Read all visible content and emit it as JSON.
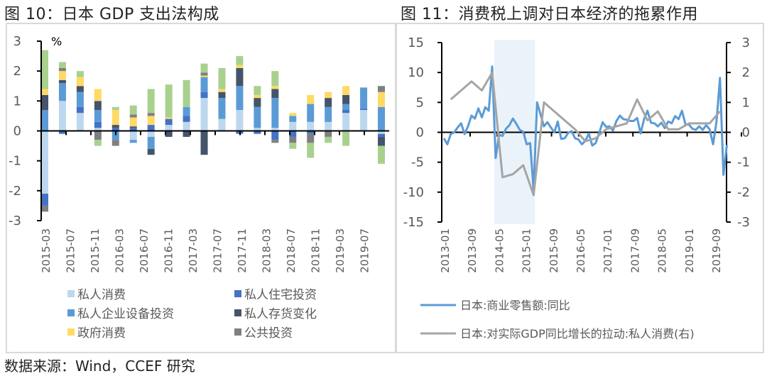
{
  "figures": {
    "left_title": "图 10：日本 GDP 支出法构成",
    "right_title": "图 11：消费税上调对日本经济的拖累作用",
    "source": "数据来源：Wind，CCEF 研究"
  },
  "chart_data": [
    {
      "type": "bar",
      "stacked": true,
      "title": "图 10：日本 GDP 支出法构成",
      "ylabel": "%",
      "xlabel": "",
      "ylim": [
        -3,
        3
      ],
      "yticks": [
        3,
        2,
        1,
        0,
        -1,
        -2,
        -3
      ],
      "grid": false,
      "legend_position": "bottom",
      "categories": [
        "2015-03",
        "2015-06",
        "2015-09",
        "2015-12",
        "2016-03",
        "2016-06",
        "2016-09",
        "2016-12",
        "2017-03",
        "2017-06",
        "2017-09",
        "2017-12",
        "2018-03",
        "2018-06",
        "2018-09",
        "2018-12",
        "2019-03",
        "2019-06",
        "2019-09",
        "2019-12"
      ],
      "xtick_labels": [
        "2015-03",
        "2015-07",
        "2015-11",
        "2016-03",
        "2016-07",
        "2016-11",
        "2017-03",
        "2017-07",
        "2017-11",
        "2018-03",
        "2018-07",
        "2018-11",
        "2019-03",
        "2019-07"
      ],
      "series": [
        {
          "name": "私人消费",
          "color": "#bdd7ee",
          "in_legend": true,
          "values": [
            -2.1,
            1.0,
            0.6,
            0.1,
            0.0,
            -0.3,
            -0.2,
            0.2,
            0.3,
            1.1,
            0.4,
            0.7,
            0.1,
            0.1,
            0.3,
            0.3,
            0.3,
            0.6,
            0.7,
            -0.1
          ]
        },
        {
          "name": "私人住宅投资",
          "color": "#4472c4",
          "in_legend": true,
          "values": [
            -0.4,
            -0.1,
            0.2,
            0.2,
            0.1,
            0.1,
            0.2,
            0.2,
            0.2,
            0.2,
            0.0,
            -0.1,
            -0.1,
            -0.3,
            -0.2,
            -0.1,
            0.0,
            0.1,
            0.05,
            -0.1
          ]
        },
        {
          "name": "私人企业设备投资",
          "color": "#5b9bd5",
          "in_legend": true,
          "values": [
            0.7,
            0.6,
            0.5,
            0.4,
            -0.3,
            -0.1,
            -0.4,
            0.0,
            0.3,
            0.5,
            0.7,
            0.8,
            0.7,
            1.0,
            0.2,
            0.6,
            0.5,
            0.2,
            0.7,
            0.8
          ]
        },
        {
          "name": "私人存货变化",
          "color": "#44546a",
          "in_legend": true,
          "values": [
            0.5,
            0.1,
            0.2,
            0.3,
            0.1,
            0.05,
            -0.2,
            -0.2,
            -0.2,
            -0.8,
            0.2,
            0.6,
            0.3,
            0.3,
            0.0,
            0.0,
            0.3,
            0.3,
            0.0,
            -0.3
          ]
        },
        {
          "name": "政府消费",
          "color": "#ffd966",
          "in_legend": true,
          "values": [
            0.2,
            0.3,
            0.3,
            0.4,
            0.5,
            0.3,
            0.3,
            0.05,
            0.0,
            0.05,
            0.1,
            0.1,
            0.1,
            0.1,
            0.1,
            0.3,
            0.2,
            0.3,
            0.0,
            0.5
          ]
        },
        {
          "name": "公共投资",
          "color": "#7f7f7f",
          "in_legend": true,
          "values": [
            -0.2,
            0.1,
            0.0,
            -0.3,
            -0.2,
            0.1,
            0.1,
            0.0,
            0.0,
            0.1,
            0.0,
            0.0,
            0.0,
            -0.1,
            -0.2,
            -0.3,
            -0.2,
            0.0,
            0.0,
            0.2
          ]
        },
        {
          "name": "",
          "color": "#a9d18e",
          "in_legend": false,
          "values": [
            1.3,
            0.2,
            0.2,
            -0.2,
            0.1,
            0.3,
            0.8,
            1.1,
            0.9,
            0.3,
            0.7,
            0.3,
            0.3,
            0.5,
            -0.2,
            -0.5,
            -0.2,
            -0.5,
            0.0,
            -0.6
          ]
        }
      ]
    },
    {
      "type": "line",
      "title": "图 11：消费税上调对日本经济的拖累作用",
      "xlabel": "",
      "ylabel_left": "",
      "ylabel_right": "",
      "ylim_left": [
        -15,
        15
      ],
      "yticks_left": [
        15,
        10,
        5,
        0,
        -5,
        -10,
        -15
      ],
      "ylim_right": [
        -3,
        3
      ],
      "yticks_right": [
        3,
        2,
        1,
        0,
        -1,
        -2,
        -3
      ],
      "grid": false,
      "legend_position": "bottom",
      "xtick_labels": [
        "2013-01",
        "2013-09",
        "2014-05",
        "2015-01",
        "2015-09",
        "2016-05",
        "2017-01",
        "2017-09",
        "2018-05",
        "2019-01",
        "2019-09"
      ],
      "shaded_region": {
        "from": "2014-04",
        "to": "2015-03",
        "color": "#deebf7"
      },
      "series": [
        {
          "name": "日本:商业零售额:同比",
          "axis": "left",
          "color": "#5b9bd5",
          "x": [
            "2013-01",
            "2013-02",
            "2013-03",
            "2013-04",
            "2013-05",
            "2013-06",
            "2013-07",
            "2013-08",
            "2013-09",
            "2013-10",
            "2013-11",
            "2013-12",
            "2014-01",
            "2014-02",
            "2014-03",
            "2014-04",
            "2014-05",
            "2014-06",
            "2014-07",
            "2014-08",
            "2014-09",
            "2014-10",
            "2014-11",
            "2014-12",
            "2015-01",
            "2015-02",
            "2015-03",
            "2015-04",
            "2015-05",
            "2015-06",
            "2015-07",
            "2015-08",
            "2015-09",
            "2015-10",
            "2015-11",
            "2015-12",
            "2016-01",
            "2016-02",
            "2016-03",
            "2016-04",
            "2016-05",
            "2016-06",
            "2016-07",
            "2016-08",
            "2016-09",
            "2016-10",
            "2016-11",
            "2016-12",
            "2017-01",
            "2017-02",
            "2017-03",
            "2017-04",
            "2017-05",
            "2017-06",
            "2017-07",
            "2017-08",
            "2017-09",
            "2017-10",
            "2017-11",
            "2017-12",
            "2018-01",
            "2018-02",
            "2018-03",
            "2018-04",
            "2018-05",
            "2018-06",
            "2018-07",
            "2018-08",
            "2018-09",
            "2018-10",
            "2018-11",
            "2018-12",
            "2019-01",
            "2019-02",
            "2019-03",
            "2019-04",
            "2019-05",
            "2019-06",
            "2019-07",
            "2019-08",
            "2019-09",
            "2019-10",
            "2019-11"
          ],
          "values": [
            -1.0,
            -2.0,
            -0.3,
            0.0,
            0.8,
            1.5,
            -0.3,
            1.0,
            2.8,
            2.3,
            4.0,
            2.5,
            4.2,
            3.6,
            11.0,
            -4.3,
            -0.4,
            -0.6,
            0.6,
            1.2,
            2.3,
            1.4,
            0.4,
            0.1,
            -2.0,
            -1.8,
            -9.7,
            5.0,
            3.0,
            1.0,
            1.7,
            0.8,
            0.0,
            1.8,
            -1.1,
            -1.0,
            -0.1,
            0.2,
            -1.0,
            -1.2,
            -2.0,
            -1.4,
            -0.2,
            -2.2,
            -1.8,
            -0.1,
            1.7,
            0.9,
            1.0,
            0.3,
            1.9,
            2.8,
            2.2,
            2.1,
            1.9,
            1.9,
            2.4,
            -0.2,
            2.2,
            3.6,
            1.6,
            1.5,
            1.0,
            1.6,
            0.7,
            1.8,
            1.5,
            2.7,
            2.2,
            3.6,
            1.3,
            1.3,
            0.6,
            0.4,
            1.0,
            0.4,
            1.2,
            0.5,
            -2.0,
            1.8,
            9.1,
            -7.1,
            -2.1
          ]
        },
        {
          "name": "日本:对实际GDP同比增长的拉动:私人消费(右)",
          "axis": "right",
          "color": "#a5a5a5",
          "x": [
            "2013-03",
            "2013-06",
            "2013-09",
            "2013-12",
            "2014-03",
            "2014-06",
            "2014-09",
            "2014-12",
            "2015-03",
            "2015-06",
            "2015-09",
            "2015-12",
            "2016-03",
            "2016-06",
            "2016-09",
            "2016-12",
            "2017-03",
            "2017-06",
            "2017-09",
            "2017-12",
            "2018-03",
            "2018-06",
            "2018-09",
            "2018-12",
            "2019-03",
            "2019-06",
            "2019-09"
          ],
          "values": [
            1.1,
            1.4,
            1.7,
            1.4,
            2.0,
            -1.5,
            -1.4,
            -1.1,
            -2.1,
            1.0,
            0.7,
            0.4,
            0.1,
            -0.3,
            -0.2,
            0.1,
            0.2,
            0.3,
            1.1,
            0.4,
            0.7,
            0.1,
            0.1,
            0.3,
            0.3,
            0.3,
            0.7
          ]
        }
      ]
    }
  ]
}
